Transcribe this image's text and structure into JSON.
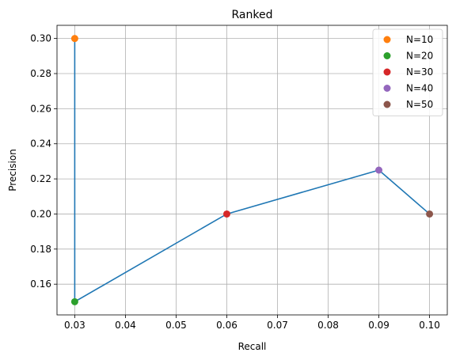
{
  "chart_data": {
    "type": "line",
    "title": "Ranked",
    "xlabel": "Recall",
    "ylabel": "Precision",
    "xlim": [
      0.0265,
      0.1035
    ],
    "ylim": [
      0.1425,
      0.3075
    ],
    "xticks": [
      0.03,
      0.04,
      0.05,
      0.06,
      0.07,
      0.08,
      0.09,
      0.1
    ],
    "xtick_labels": [
      "0.03",
      "0.04",
      "0.05",
      "0.06",
      "0.07",
      "0.08",
      "0.09",
      "0.10"
    ],
    "yticks": [
      0.16,
      0.18,
      0.2,
      0.22,
      0.24,
      0.26,
      0.28,
      0.3
    ],
    "ytick_labels": [
      "0.16",
      "0.18",
      "0.20",
      "0.22",
      "0.24",
      "0.26",
      "0.28",
      "0.30"
    ],
    "grid": true,
    "line": {
      "color": "#1f77b4",
      "x": [
        0.03,
        0.03,
        0.06,
        0.09,
        0.1
      ],
      "y": [
        0.3,
        0.15,
        0.2,
        0.225,
        0.2
      ]
    },
    "series": [
      {
        "name": "N=10",
        "x": 0.03,
        "y": 0.3,
        "color": "#ff7f0e"
      },
      {
        "name": "N=20",
        "x": 0.03,
        "y": 0.15,
        "color": "#2ca02c"
      },
      {
        "name": "N=30",
        "x": 0.06,
        "y": 0.2,
        "color": "#d62728"
      },
      {
        "name": "N=40",
        "x": 0.09,
        "y": 0.225,
        "color": "#9467bd"
      },
      {
        "name": "N=50",
        "x": 0.1,
        "y": 0.2,
        "color": "#8c564b"
      }
    ],
    "legend_position": "top-right"
  }
}
